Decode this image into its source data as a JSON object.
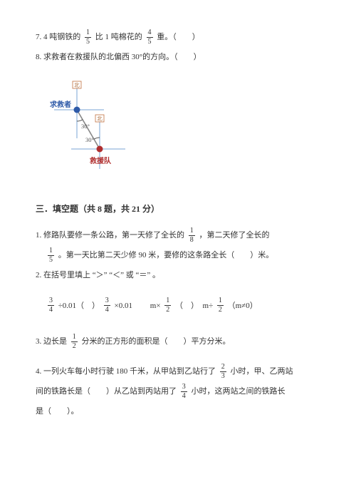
{
  "q7": {
    "prefix": "7. 4 吨钢铁的",
    "frac1_num": "1",
    "frac1_den": "5",
    "mid": "比 1 吨棉花的",
    "frac2_num": "4",
    "frac2_den": "5",
    "suffix": "重。（　　）"
  },
  "q8": {
    "text": "8. 求救者在救援队的北偏西 30°的方向。（　　）"
  },
  "diagram": {
    "label_rescuer": "求救者",
    "label_team": "救援队",
    "angle1": "30°",
    "angle2": "30°",
    "north_marker": "北",
    "colors": {
      "axis": "#7aa6d6",
      "line": "#888888",
      "point_blue": "#2e5aa8",
      "point_red": "#b02e2e",
      "text_blue": "#2e5aa8",
      "text_red": "#b02e2e",
      "angle_text": "#555555",
      "marker_border": "#c07040",
      "marker_fill": "#ffffff"
    }
  },
  "section3": {
    "title": "三．填空题（共 8 题，共 21 分）"
  },
  "f1": {
    "line1_pre": "1. 修路队要修一条公路，第一天修了全长的",
    "frac1_num": "1",
    "frac1_den": "8",
    "line1_post": "，第二天修了全长的",
    "frac2_num": "1",
    "frac2_den": "5",
    "line2_mid": "。第一天比第二天少修 90 米，要修的这条路全长（　　）米。"
  },
  "f2": {
    "text": "2. 在括号里填上 “＞” “＜” 或 “＝” 。",
    "expr1_frac_num": "3",
    "expr1_frac_den": "4",
    "expr1_op": "÷0.01（　）",
    "expr2_frac_num": "3",
    "expr2_frac_den": "4",
    "expr2_op": "×0.01",
    "expr3_pre": "　　m×",
    "expr3_fracA_num": "1",
    "expr3_fracA_den": "2",
    "expr3_mid": "（　）　m÷",
    "expr3_fracB_num": "1",
    "expr3_fracB_den": "2",
    "expr3_post": "（m≠0）"
  },
  "f3": {
    "pre": "3. 边长是",
    "frac_num": "1",
    "frac_den": "2",
    "post": "分米的正方形的面积是（　　）平方分米。"
  },
  "f4": {
    "line1_pre": "4. 一列火车每小时行驶 180 千米，从甲站到乙站行了",
    "frac1_num": "2",
    "frac1_den": "3",
    "line1_post": "小时，甲、乙两站",
    "line2_pre": "间的铁路长是（　　）从乙站到丙站用了",
    "frac2_num": "3",
    "frac2_den": "4",
    "line2_post": "小时，这两站之间的铁路长",
    "line3": "是（　　）。"
  }
}
